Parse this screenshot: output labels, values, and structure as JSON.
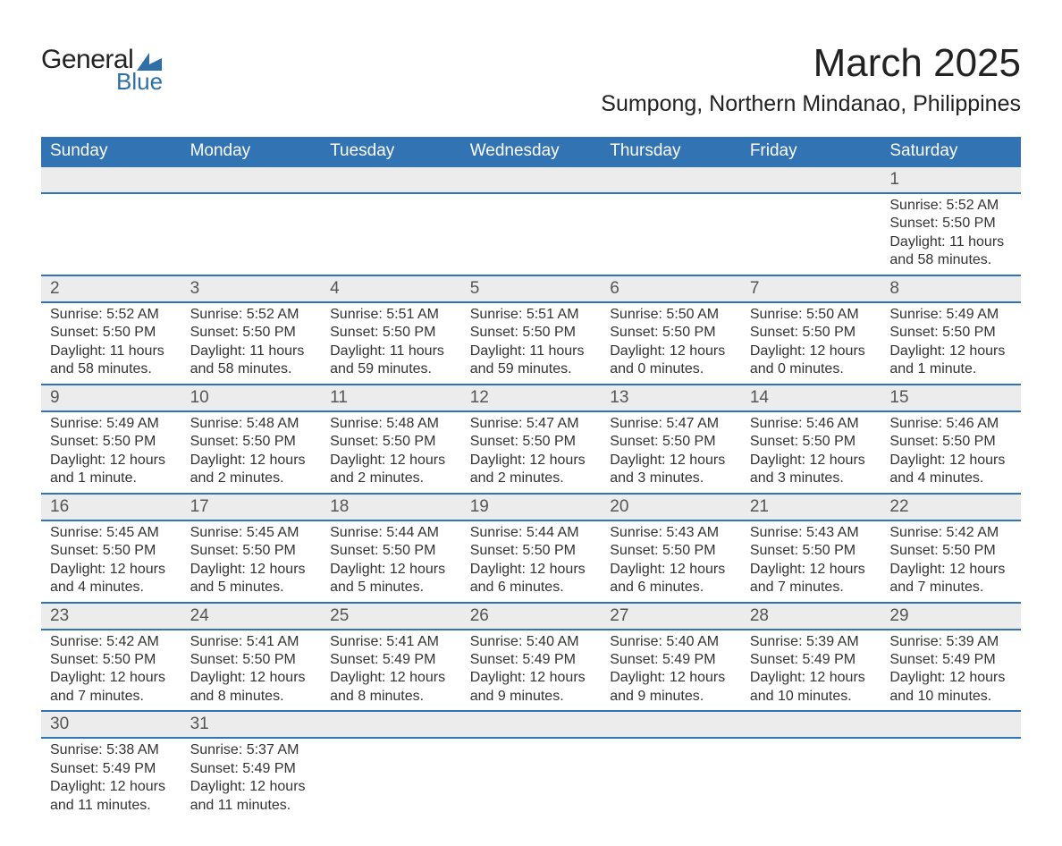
{
  "logo": {
    "text_top": "General",
    "text_bottom": "Blue",
    "shape_color": "#2f6fa7",
    "top_color": "#222222",
    "bottom_color": "#2f6fa7"
  },
  "title": "March 2025",
  "location": "Sumpong, Northern Mindanao, Philippines",
  "colors": {
    "header_bg": "#3273b4",
    "header_text": "#ffffff",
    "daynum_bg": "#ececec",
    "daynum_text": "#555555",
    "row_border": "#3273b4",
    "body_text": "#333333",
    "background": "#ffffff"
  },
  "day_headers": [
    "Sunday",
    "Monday",
    "Tuesday",
    "Wednesday",
    "Thursday",
    "Friday",
    "Saturday"
  ],
  "weeks": [
    [
      null,
      null,
      null,
      null,
      null,
      null,
      {
        "n": "1",
        "sunrise": "5:52 AM",
        "sunset": "5:50 PM",
        "daylight": "11 hours and 58 minutes."
      }
    ],
    [
      {
        "n": "2",
        "sunrise": "5:52 AM",
        "sunset": "5:50 PM",
        "daylight": "11 hours and 58 minutes."
      },
      {
        "n": "3",
        "sunrise": "5:52 AM",
        "sunset": "5:50 PM",
        "daylight": "11 hours and 58 minutes."
      },
      {
        "n": "4",
        "sunrise": "5:51 AM",
        "sunset": "5:50 PM",
        "daylight": "11 hours and 59 minutes."
      },
      {
        "n": "5",
        "sunrise": "5:51 AM",
        "sunset": "5:50 PM",
        "daylight": "11 hours and 59 minutes."
      },
      {
        "n": "6",
        "sunrise": "5:50 AM",
        "sunset": "5:50 PM",
        "daylight": "12 hours and 0 minutes."
      },
      {
        "n": "7",
        "sunrise": "5:50 AM",
        "sunset": "5:50 PM",
        "daylight": "12 hours and 0 minutes."
      },
      {
        "n": "8",
        "sunrise": "5:49 AM",
        "sunset": "5:50 PM",
        "daylight": "12 hours and 1 minute."
      }
    ],
    [
      {
        "n": "9",
        "sunrise": "5:49 AM",
        "sunset": "5:50 PM",
        "daylight": "12 hours and 1 minute."
      },
      {
        "n": "10",
        "sunrise": "5:48 AM",
        "sunset": "5:50 PM",
        "daylight": "12 hours and 2 minutes."
      },
      {
        "n": "11",
        "sunrise": "5:48 AM",
        "sunset": "5:50 PM",
        "daylight": "12 hours and 2 minutes."
      },
      {
        "n": "12",
        "sunrise": "5:47 AM",
        "sunset": "5:50 PM",
        "daylight": "12 hours and 2 minutes."
      },
      {
        "n": "13",
        "sunrise": "5:47 AM",
        "sunset": "5:50 PM",
        "daylight": "12 hours and 3 minutes."
      },
      {
        "n": "14",
        "sunrise": "5:46 AM",
        "sunset": "5:50 PM",
        "daylight": "12 hours and 3 minutes."
      },
      {
        "n": "15",
        "sunrise": "5:46 AM",
        "sunset": "5:50 PM",
        "daylight": "12 hours and 4 minutes."
      }
    ],
    [
      {
        "n": "16",
        "sunrise": "5:45 AM",
        "sunset": "5:50 PM",
        "daylight": "12 hours and 4 minutes."
      },
      {
        "n": "17",
        "sunrise": "5:45 AM",
        "sunset": "5:50 PM",
        "daylight": "12 hours and 5 minutes."
      },
      {
        "n": "18",
        "sunrise": "5:44 AM",
        "sunset": "5:50 PM",
        "daylight": "12 hours and 5 minutes."
      },
      {
        "n": "19",
        "sunrise": "5:44 AM",
        "sunset": "5:50 PM",
        "daylight": "12 hours and 6 minutes."
      },
      {
        "n": "20",
        "sunrise": "5:43 AM",
        "sunset": "5:50 PM",
        "daylight": "12 hours and 6 minutes."
      },
      {
        "n": "21",
        "sunrise": "5:43 AM",
        "sunset": "5:50 PM",
        "daylight": "12 hours and 7 minutes."
      },
      {
        "n": "22",
        "sunrise": "5:42 AM",
        "sunset": "5:50 PM",
        "daylight": "12 hours and 7 minutes."
      }
    ],
    [
      {
        "n": "23",
        "sunrise": "5:42 AM",
        "sunset": "5:50 PM",
        "daylight": "12 hours and 7 minutes."
      },
      {
        "n": "24",
        "sunrise": "5:41 AM",
        "sunset": "5:50 PM",
        "daylight": "12 hours and 8 minutes."
      },
      {
        "n": "25",
        "sunrise": "5:41 AM",
        "sunset": "5:49 PM",
        "daylight": "12 hours and 8 minutes."
      },
      {
        "n": "26",
        "sunrise": "5:40 AM",
        "sunset": "5:49 PM",
        "daylight": "12 hours and 9 minutes."
      },
      {
        "n": "27",
        "sunrise": "5:40 AM",
        "sunset": "5:49 PM",
        "daylight": "12 hours and 9 minutes."
      },
      {
        "n": "28",
        "sunrise": "5:39 AM",
        "sunset": "5:49 PM",
        "daylight": "12 hours and 10 minutes."
      },
      {
        "n": "29",
        "sunrise": "5:39 AM",
        "sunset": "5:49 PM",
        "daylight": "12 hours and 10 minutes."
      }
    ],
    [
      {
        "n": "30",
        "sunrise": "5:38 AM",
        "sunset": "5:49 PM",
        "daylight": "12 hours and 11 minutes."
      },
      {
        "n": "31",
        "sunrise": "5:37 AM",
        "sunset": "5:49 PM",
        "daylight": "12 hours and 11 minutes."
      },
      null,
      null,
      null,
      null,
      null
    ]
  ],
  "labels": {
    "sunrise": "Sunrise: ",
    "sunset": "Sunset: ",
    "daylight": "Daylight: "
  }
}
